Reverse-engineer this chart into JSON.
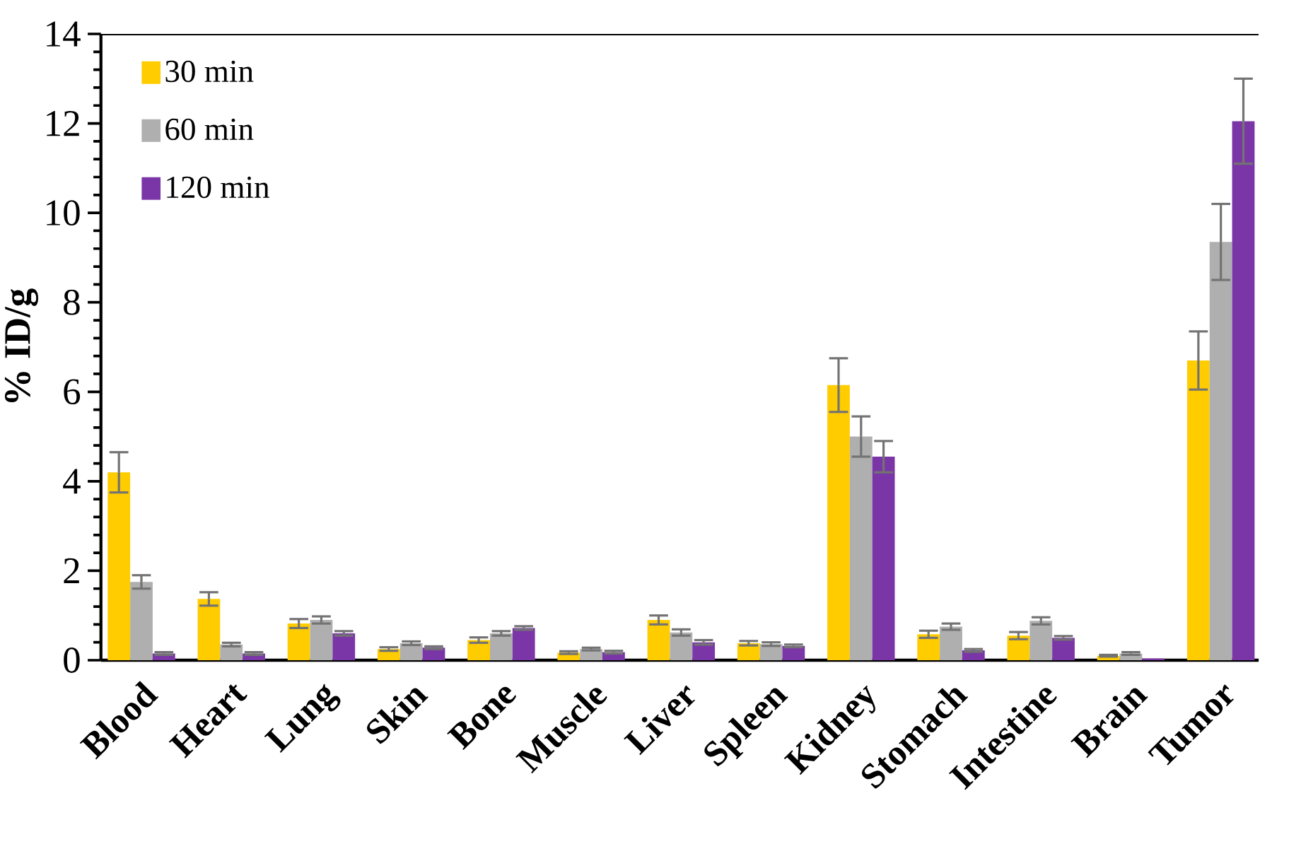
{
  "chart_data": {
    "type": "bar",
    "ylabel": "% ID/g",
    "categories": [
      "Blood",
      "Heart",
      "Lung",
      "Skin",
      "Bone",
      "Muscle",
      "Liver",
      "Spleen",
      "Kidney",
      "Stomach",
      "Intestine",
      "Brain",
      "Tumor"
    ],
    "series": [
      {
        "name": "30 min",
        "color": "#ffcc00",
        "values": [
          4.2,
          1.37,
          0.82,
          0.25,
          0.45,
          0.17,
          0.9,
          0.38,
          6.15,
          0.58,
          0.55,
          0.1,
          6.7
        ],
        "errors": [
          0.45,
          0.15,
          0.1,
          0.04,
          0.06,
          0.03,
          0.1,
          0.05,
          0.6,
          0.08,
          0.08,
          0.02,
          0.65
        ]
      },
      {
        "name": "60 min",
        "color": "#afafaf",
        "values": [
          1.75,
          0.35,
          0.9,
          0.38,
          0.6,
          0.25,
          0.62,
          0.36,
          5.0,
          0.75,
          0.88,
          0.15,
          9.35
        ],
        "errors": [
          0.15,
          0.04,
          0.08,
          0.04,
          0.05,
          0.03,
          0.07,
          0.04,
          0.45,
          0.07,
          0.08,
          0.03,
          0.85
        ]
      },
      {
        "name": "120 min",
        "color": "#7a36a6",
        "values": [
          0.15,
          0.15,
          0.6,
          0.28,
          0.72,
          0.18,
          0.4,
          0.32,
          4.55,
          0.22,
          0.5,
          0.04,
          12.05
        ],
        "errors": [
          0.03,
          0.03,
          0.05,
          0.03,
          0.04,
          0.03,
          0.05,
          0.03,
          0.35,
          0.03,
          0.04,
          null,
          0.95
        ]
      }
    ],
    "ylim": [
      0,
      14
    ],
    "yticks": [
      0,
      2,
      4,
      6,
      8,
      10,
      12,
      14
    ],
    "grid": false,
    "legend": "top left"
  }
}
